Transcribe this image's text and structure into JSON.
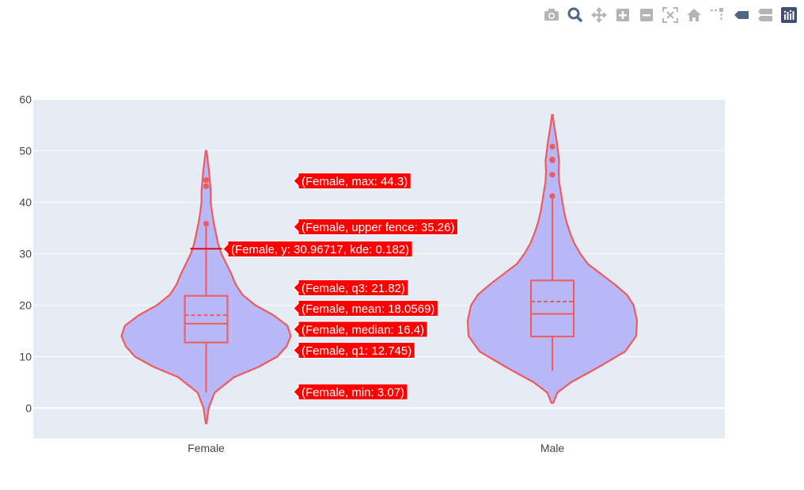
{
  "toolbar": {
    "buttons": [
      {
        "name": "camera-icon"
      },
      {
        "name": "zoom-icon"
      },
      {
        "name": "pan-icon"
      },
      {
        "name": "zoom-in-icon"
      },
      {
        "name": "zoom-out-icon"
      },
      {
        "name": "autoscale-icon"
      },
      {
        "name": "home-icon"
      },
      {
        "name": "spike-lines-icon"
      },
      {
        "name": "hover-closest-icon"
      },
      {
        "name": "hover-compare-icon"
      },
      {
        "name": "plotly-logo-icon"
      }
    ]
  },
  "chart_data": {
    "type": "violin",
    "title": "",
    "xlabel": "",
    "ylabel": "",
    "categories": [
      "Female",
      "Male"
    ],
    "ylim": [
      -6,
      60
    ],
    "yticks": [
      0,
      10,
      20,
      30,
      40,
      50,
      60
    ],
    "grid": true,
    "colors": {
      "line": "#ef5a5a",
      "fill": "#b8b8f8",
      "plot_bg": "#e5ecf6",
      "hover_bg": "#ff0000"
    },
    "series": [
      {
        "category": "Female",
        "min": 3.07,
        "q1": 12.745,
        "median": 16.4,
        "mean": 18.0569,
        "q3": 21.82,
        "upper_fence": 35.26,
        "max": 44.3,
        "violin_low": -3,
        "violin_high": 50,
        "outliers": [
          35.83,
          43.11,
          44.3
        ],
        "density": [
          [
            -3,
            0.005
          ],
          [
            0,
            0.03
          ],
          [
            3,
            0.1
          ],
          [
            6,
            0.33
          ],
          [
            8,
            0.62
          ],
          [
            10,
            0.84
          ],
          [
            12,
            0.95
          ],
          [
            14,
            1.0
          ],
          [
            16,
            0.96
          ],
          [
            18,
            0.8
          ],
          [
            20,
            0.58
          ],
          [
            22,
            0.43
          ],
          [
            24,
            0.35
          ],
          [
            26,
            0.3
          ],
          [
            28,
            0.24
          ],
          [
            30,
            0.18
          ],
          [
            32,
            0.14
          ],
          [
            34,
            0.115
          ],
          [
            36,
            0.09
          ],
          [
            38,
            0.07
          ],
          [
            40,
            0.055
          ],
          [
            42,
            0.055
          ],
          [
            44,
            0.045
          ],
          [
            46,
            0.035
          ],
          [
            48,
            0.02
          ],
          [
            50,
            0.005
          ]
        ]
      },
      {
        "category": "Male",
        "min": 7.25,
        "q1": 13.9,
        "median": 18.3,
        "mean": 20.7,
        "q3": 24.8,
        "upper_fence": 40.6,
        "violin_low": 1,
        "violin_high": 57,
        "outliers": [
          41.19,
          45.35,
          48.17,
          48.33,
          50.81
        ],
        "density": [
          [
            1,
            0.01
          ],
          [
            3,
            0.06
          ],
          [
            5,
            0.22
          ],
          [
            8,
            0.55
          ],
          [
            11,
            0.86
          ],
          [
            14,
            0.99
          ],
          [
            17,
            1.0
          ],
          [
            20,
            0.96
          ],
          [
            22,
            0.88
          ],
          [
            24,
            0.74
          ],
          [
            26,
            0.58
          ],
          [
            28,
            0.42
          ],
          [
            30,
            0.33
          ],
          [
            32,
            0.26
          ],
          [
            34,
            0.21
          ],
          [
            36,
            0.17
          ],
          [
            38,
            0.14
          ],
          [
            40,
            0.12
          ],
          [
            42,
            0.1
          ],
          [
            44,
            0.08
          ],
          [
            46,
            0.075
          ],
          [
            48,
            0.08
          ],
          [
            50,
            0.065
          ],
          [
            52,
            0.05
          ],
          [
            54,
            0.03
          ],
          [
            56,
            0.012
          ],
          [
            57,
            0.005
          ]
        ]
      }
    ],
    "hover": {
      "line_value": 30.96717,
      "labels": [
        {
          "text": "(Female, max: 44.3)",
          "y": 44.3
        },
        {
          "text": "(Female, upper fence: 35.26)",
          "y": 35.26
        },
        {
          "text": "(Female, y: 30.96717, kde: 0.182)",
          "y": 30.96717
        },
        {
          "text": "(Female, q3: 21.82)",
          "y": 21.82
        },
        {
          "text": "(Female, mean: 18.0569)",
          "y": 18.0569
        },
        {
          "text": "(Female, median: 16.4)",
          "y": 16.4
        },
        {
          "text": "(Female, q1: 12.745)",
          "y": 12.745
        },
        {
          "text": "(Female, min: 3.07)",
          "y": 3.07
        }
      ]
    }
  }
}
